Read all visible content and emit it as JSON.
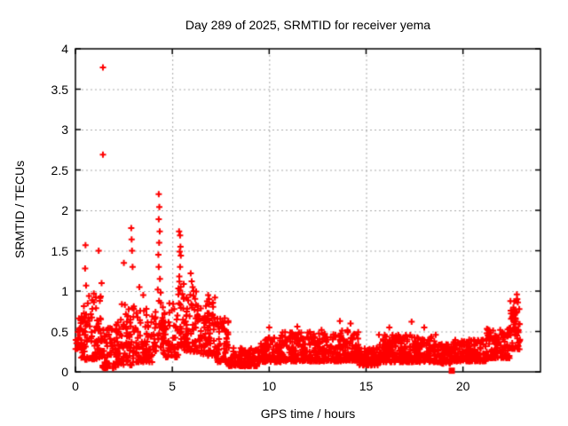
{
  "chart_data": {
    "type": "scatter",
    "title": "Day 289 of 2025, SRMTID for receiver yema",
    "xlabel": "GPS time / hours",
    "ylabel": "SRMTID / TECUs",
    "xlim": [
      0,
      24
    ],
    "ylim": [
      0,
      4
    ],
    "xticks": [
      0,
      5,
      10,
      15,
      20
    ],
    "xtick_labels": [
      "0",
      "5",
      "10",
      "15",
      "20"
    ],
    "yticks": [
      0,
      0.5,
      1,
      1.5,
      2,
      2.5,
      3,
      3.5,
      4
    ],
    "ytick_labels": [
      "0",
      "0.5",
      "1",
      "1.5",
      "2",
      "2.5",
      "3",
      "3.5",
      "4"
    ],
    "grid": true,
    "legend_position": "none",
    "marker": "plus",
    "marker_color": "#ff0000",
    "grid_color": "#a8a8a8",
    "frame_color": "#000000",
    "series_name": "SRMTID",
    "notable_points": [
      [
        1.42,
        3.77
      ],
      [
        1.42,
        2.69
      ],
      [
        0.52,
        1.57
      ],
      [
        1.2,
        1.5
      ],
      [
        0.5,
        1.28
      ],
      [
        0.55,
        1.07
      ],
      [
        1.35,
        1.1
      ],
      [
        0.95,
        0.97
      ],
      [
        2.5,
        1.35
      ],
      [
        2.88,
        1.78
      ],
      [
        2.9,
        1.64
      ],
      [
        2.92,
        1.5
      ],
      [
        2.95,
        1.3
      ],
      [
        3.3,
        1.05
      ],
      [
        3.5,
        0.95
      ],
      [
        4.3,
        2.2
      ],
      [
        4.33,
        2.04
      ],
      [
        4.3,
        1.89
      ],
      [
        4.35,
        1.74
      ],
      [
        4.32,
        1.6
      ],
      [
        4.28,
        1.45
      ],
      [
        4.3,
        1.3
      ],
      [
        4.36,
        1.15
      ],
      [
        4.25,
        1.02
      ],
      [
        5.35,
        1.74
      ],
      [
        5.4,
        1.69
      ],
      [
        5.42,
        1.55
      ],
      [
        5.38,
        1.49
      ],
      [
        5.44,
        1.44
      ],
      [
        5.4,
        1.3
      ],
      [
        5.36,
        1.18
      ],
      [
        5.95,
        1.22
      ],
      [
        6.0,
        1.12
      ],
      [
        6.05,
        1.05
      ],
      [
        6.1,
        1.0
      ],
      [
        6.85,
        0.95
      ],
      [
        6.9,
        0.9
      ],
      [
        7.2,
        0.92
      ],
      [
        10.0,
        0.55
      ],
      [
        11.45,
        0.56
      ],
      [
        12.7,
        0.52
      ],
      [
        13.65,
        0.63
      ],
      [
        14.2,
        0.6
      ],
      [
        16.2,
        0.55
      ],
      [
        17.35,
        0.62
      ],
      [
        18.0,
        0.55
      ],
      [
        22.78,
        0.96
      ],
      [
        22.8,
        0.9
      ],
      [
        22.83,
        0.86
      ]
    ],
    "square_marker_point": [
      19.4,
      0.02
    ],
    "dense_bands": {
      "format": [
        "x_start_hours",
        "x_end_hours",
        "y_min_tecu",
        "y_max_tecu",
        "point_count"
      ],
      "bands": [
        [
          0.0,
          0.35,
          0.25,
          0.72,
          25
        ],
        [
          0.3,
          1.35,
          0.15,
          0.95,
          95
        ],
        [
          1.35,
          2.15,
          0.04,
          0.55,
          65
        ],
        [
          2.1,
          3.1,
          0.08,
          0.85,
          85
        ],
        [
          3.1,
          4.2,
          0.12,
          0.8,
          90
        ],
        [
          4.2,
          4.55,
          0.3,
          1.0,
          25
        ],
        [
          4.5,
          5.3,
          0.18,
          0.85,
          70
        ],
        [
          5.3,
          5.62,
          0.3,
          1.15,
          30
        ],
        [
          5.6,
          6.4,
          0.25,
          1.0,
          75
        ],
        [
          6.4,
          7.3,
          0.2,
          0.9,
          80
        ],
        [
          7.3,
          7.9,
          0.12,
          0.68,
          55
        ],
        [
          7.9,
          9.4,
          0.07,
          0.3,
          130
        ],
        [
          9.4,
          10.6,
          0.12,
          0.45,
          110
        ],
        [
          10.6,
          12.1,
          0.13,
          0.5,
          135
        ],
        [
          12.1,
          13.7,
          0.13,
          0.48,
          140
        ],
        [
          13.7,
          14.6,
          0.14,
          0.52,
          85
        ],
        [
          14.6,
          15.6,
          0.08,
          0.32,
          90
        ],
        [
          15.6,
          18.6,
          0.12,
          0.46,
          270
        ],
        [
          18.6,
          19.45,
          0.1,
          0.36,
          70
        ],
        [
          19.5,
          21.2,
          0.13,
          0.4,
          150
        ],
        [
          21.2,
          22.4,
          0.17,
          0.55,
          110
        ],
        [
          22.4,
          22.95,
          0.28,
          0.88,
          55
        ]
      ]
    }
  }
}
